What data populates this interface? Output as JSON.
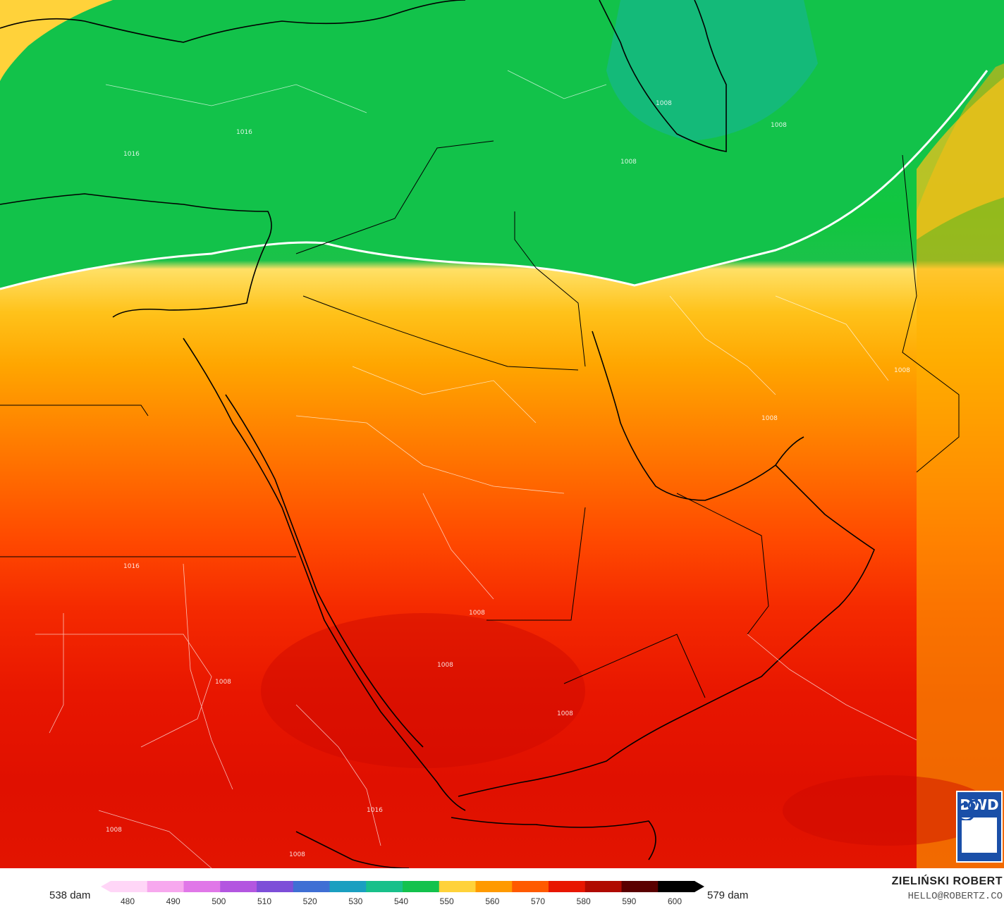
{
  "legend": {
    "min_label": "538 dam",
    "max_label": "579 dam",
    "ticks": [
      "480",
      "490",
      "500",
      "510",
      "520",
      "530",
      "540",
      "550",
      "560",
      "570",
      "580",
      "590",
      "600"
    ],
    "colors": [
      "#ffd6f7",
      "#f7a8ee",
      "#e077e8",
      "#b356e0",
      "#7d4ed8",
      "#3f6fd4",
      "#1a9fc0",
      "#18c08a",
      "#13c24d",
      "#ffd23a",
      "#ff9a00",
      "#ff5a00",
      "#e81600",
      "#b00a00",
      "#5a0000",
      "#000000"
    ]
  },
  "map": {
    "isobar_labels": [
      "1008",
      "1008",
      "1008",
      "1016",
      "1016",
      "1008",
      "1008",
      "1008",
      "1016",
      "1008",
      "1008",
      "1008",
      "1016",
      "1008",
      "1008"
    ]
  },
  "logo": {
    "text": "DWD"
  },
  "credit": {
    "author": "ZIELIŃSKI ROBERT",
    "email": "HELLO@ROBERTZ.CO"
  }
}
